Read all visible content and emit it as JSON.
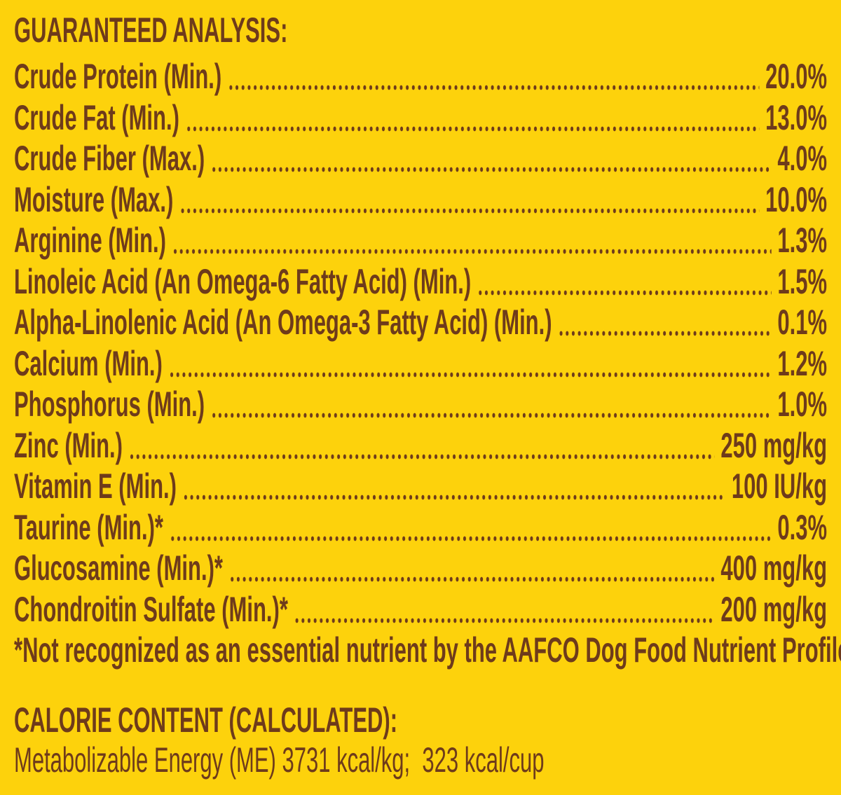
{
  "header": {
    "title": "GUARANTEED ANALYSIS:"
  },
  "rows": [
    {
      "name": "Crude Protein (Min.)",
      "value": "20.0%"
    },
    {
      "name": "Crude Fat (Min.)",
      "value": "13.0%"
    },
    {
      "name": "Crude Fiber (Max.)",
      "value": "4.0%"
    },
    {
      "name": "Moisture (Max.)",
      "value": "10.0%"
    },
    {
      "name": "Arginine (Min.)",
      "value": "1.3%"
    },
    {
      "name": "Linoleic Acid (An Omega-6 Fatty Acid) (Min.)",
      "value": "1.5%"
    },
    {
      "name": "Alpha-Linolenic Acid (An Omega-3 Fatty Acid) (Min.)",
      "value": "0.1%"
    },
    {
      "name": "Calcium (Min.)",
      "value": "1.2%"
    },
    {
      "name": "Phosphorus (Min.)",
      "value": "1.0%"
    },
    {
      "name": "Zinc (Min.)",
      "value": "250 mg/kg"
    },
    {
      "name": "Vitamin E (Min.)",
      "value": "100 IU/kg"
    },
    {
      "name": "Taurine (Min.)*",
      "value": "0.3%"
    },
    {
      "name": "Glucosamine (Min.)*",
      "value": "400 mg/kg"
    },
    {
      "name": "Chondroitin Sulfate (Min.)*",
      "value": "200 mg/kg"
    }
  ],
  "footnote": "*Not recognized as an essential nutrient by the AAFCO Dog Food Nutrient Profiles.",
  "calorie": {
    "title": "CALORIE CONTENT (CALCULATED):",
    "text": "Metabolizable Energy (ME) 3731 kcal/kg;  323 kcal/cup"
  }
}
